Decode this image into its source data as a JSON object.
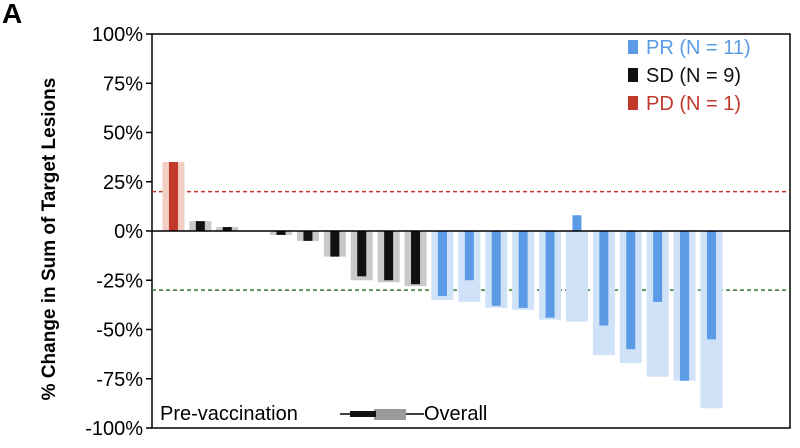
{
  "panel_label": "A",
  "chart_data": {
    "type": "bar",
    "ylabel": "% Change in Sum of Target Lesions",
    "xlabel": "",
    "ylim": [
      -100,
      100
    ],
    "y_ticks": [
      100,
      75,
      50,
      25,
      0,
      -25,
      -50,
      -75,
      -100
    ],
    "y_tick_labels": [
      "100%",
      "75%",
      "50%",
      "25%",
      "0%",
      "-25%",
      "-50%",
      "-75%",
      "-100%"
    ],
    "reference_lines": [
      {
        "value": 20,
        "color": "#c0392b",
        "style": "dashed"
      },
      {
        "value": -30,
        "color": "#2e7d32",
        "style": "dashed"
      }
    ],
    "legend": {
      "placement": "top-right",
      "items": [
        {
          "label": "PR (N = 11)",
          "group": "PR",
          "color": "#5b9be6"
        },
        {
          "label": "SD (N = 9)",
          "group": "SD",
          "color": "#111111"
        },
        {
          "label": "PD (N = 1)",
          "group": "PD",
          "color": "#c0392b"
        }
      ]
    },
    "bar_legend": {
      "left_label": "Pre-vaccination",
      "right_label": "Overall"
    },
    "group_colors": {
      "PD": {
        "pre": "#c0392b",
        "overall": "#f1cfc2"
      },
      "SD": {
        "pre": "#111111",
        "overall": "#c9c9c9"
      },
      "PR": {
        "pre": "#5b9be6",
        "overall": "#cfe2f7"
      }
    },
    "patients": [
      {
        "group": "PD",
        "overall": 35,
        "pre": 35
      },
      {
        "group": "SD",
        "overall": 5,
        "pre": 5
      },
      {
        "group": "SD",
        "overall": 2,
        "pre": 2
      },
      {
        "group": "SD",
        "overall": 0,
        "pre": 0
      },
      {
        "group": "SD",
        "overall": -2,
        "pre": -2
      },
      {
        "group": "SD",
        "overall": -5,
        "pre": -5
      },
      {
        "group": "SD",
        "overall": -13,
        "pre": -13
      },
      {
        "group": "SD",
        "overall": -25,
        "pre": -23
      },
      {
        "group": "SD",
        "overall": -26,
        "pre": -25
      },
      {
        "group": "SD",
        "overall": -28,
        "pre": -27
      },
      {
        "group": "PR",
        "overall": -35,
        "pre": -33
      },
      {
        "group": "PR",
        "overall": -36,
        "pre": -25
      },
      {
        "group": "PR",
        "overall": -39,
        "pre": -38
      },
      {
        "group": "PR",
        "overall": -40,
        "pre": -39
      },
      {
        "group": "PR",
        "overall": -45,
        "pre": -44
      },
      {
        "group": "PR",
        "overall": -46,
        "pre": 8
      },
      {
        "group": "PR",
        "overall": -63,
        "pre": -48
      },
      {
        "group": "PR",
        "overall": -67,
        "pre": -60
      },
      {
        "group": "PR",
        "overall": -74,
        "pre": -36
      },
      {
        "group": "PR",
        "overall": -76,
        "pre": -76
      },
      {
        "group": "PR",
        "overall": -90,
        "pre": -55
      }
    ]
  }
}
